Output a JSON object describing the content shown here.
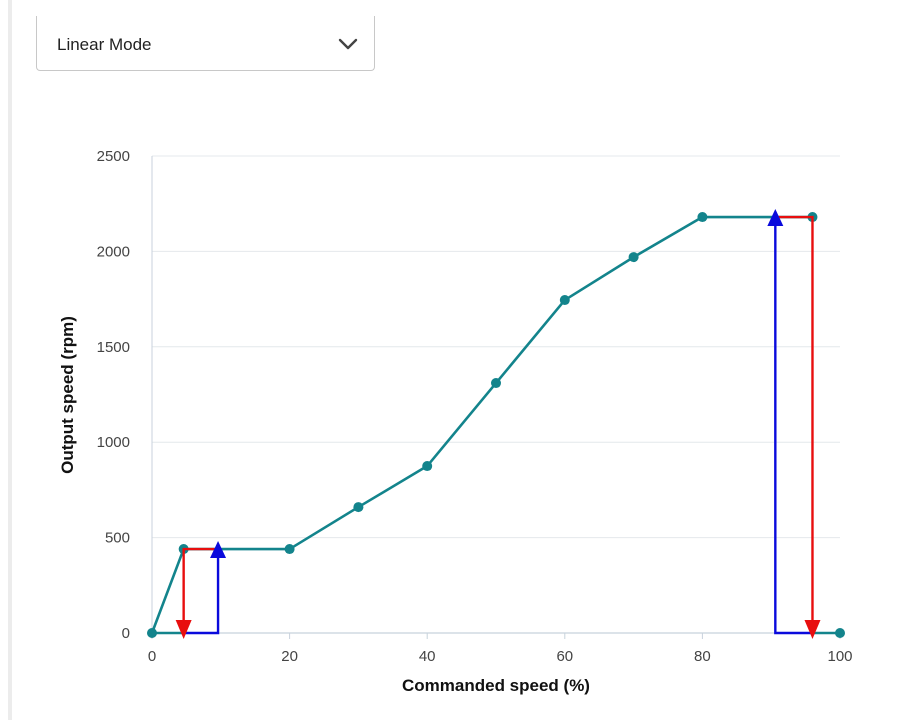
{
  "mode_select": {
    "value": "Linear Mode",
    "icon": "chevron-down-icon"
  },
  "colors": {
    "curve": "#13848c",
    "up_marker": "#0a0adc",
    "down_marker": "#e80e0e",
    "grid": "#e4e8ec",
    "axis": "#c8d2dc"
  },
  "chart_data": {
    "type": "line",
    "xlabel": "Commanded speed (%)",
    "ylabel": "Output speed (rpm)",
    "xlim": [
      0,
      100
    ],
    "ylim": [
      0,
      2500
    ],
    "xticks": [
      0,
      20,
      40,
      60,
      80,
      100
    ],
    "yticks": [
      0,
      500,
      1000,
      1500,
      2000,
      2500
    ],
    "grid": "horizontal",
    "series": [
      {
        "x": [
          0,
          4.6,
          20,
          30,
          40,
          50,
          60,
          70,
          80,
          96,
          100
        ],
        "y": [
          0,
          440,
          440,
          660,
          875,
          1310,
          1745,
          1970,
          2180,
          2180,
          0
        ],
        "line_segments": [
          [
            0,
            1,
            2,
            3,
            4,
            5,
            6,
            7,
            8,
            9
          ],
          [
            [
              4.6,
              0
            ],
            [
              0,
              0
            ]
          ],
          [
            [
              96,
              0
            ],
            [
              100,
              0
            ]
          ]
        ]
      }
    ],
    "hysteresis": {
      "low": {
        "on_x": 9.6,
        "off_x": 4.6,
        "y": 440
      },
      "high": {
        "on_x": 90.6,
        "off_x": 96,
        "y": 2180
      }
    }
  }
}
